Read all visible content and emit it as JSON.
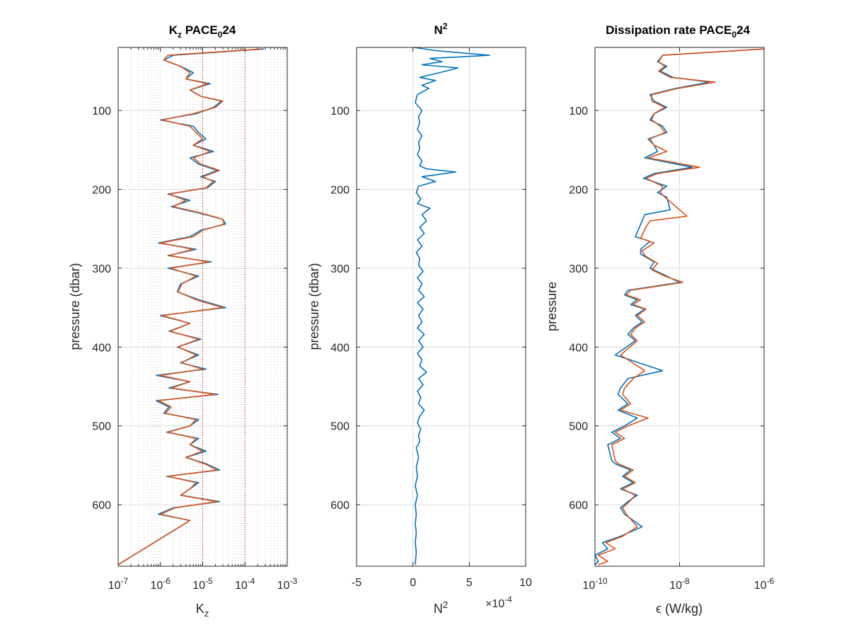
{
  "colors": {
    "series1": "#0072BD",
    "series2": "#D95319",
    "refline": "#c00000",
    "axes": "#262626",
    "grid": "#dcdcdc"
  },
  "chart_data": [
    {
      "type": "line",
      "title": {
        "main": "K",
        "sub": "z",
        "rest": " PACE",
        "sub2": "0",
        "tail": "24"
      },
      "xlabel": {
        "main": "K",
        "sub": "z"
      },
      "ylabel": "pressure (dbar)",
      "xscale": "log",
      "xlim": [
        1e-07,
        0.001
      ],
      "ylim": [
        20,
        678
      ],
      "yreverse": true,
      "grid": "minor-log",
      "reference_x": [
        1e-05,
        0.0001
      ],
      "xticks": [
        "10^-7",
        "10^-6",
        "10^-5",
        "10^-4",
        "10^-3"
      ],
      "yticks": [
        100,
        200,
        300,
        400,
        500,
        600
      ],
      "series": [
        {
          "x": [
            0.00028,
            2e-06,
            1.2e-06,
            3e-06,
            6e-06,
            4e-06,
            1.5e-05,
            5e-06,
            9e-06,
            2.8e-05,
            1.8e-05,
            7e-06,
            1e-06,
            6e-06,
            8e-06,
            1.2e-05,
            6e-06,
            1.8e-05,
            5e-06,
            8e-06,
            2.2e-05,
            9e-06,
            2e-05,
            1.3e-05,
            1.5e-06,
            5e-06,
            1.8e-06,
            8e-06,
            3e-05,
            3.5e-05,
            9e-06,
            5e-06,
            9e-07,
            7e-06,
            1.5e-06,
            1.6e-05,
            1.5e-06,
            8e-06,
            3e-06,
            2.5e-06,
            8e-06,
            3.5e-05,
            1e-06,
            5e-06,
            1.6e-06,
            9e-06,
            2.5e-06,
            8e-06,
            3e-06,
            1.2e-05,
            8e-07,
            5e-06,
            1.6e-06,
            2.3e-05,
            8e-07,
            1.6e-06,
            1.2e-06,
            8e-06,
            5e-06,
            1.4e-06,
            8e-06,
            5e-06,
            1.2e-05,
            4e-06,
            1.2e-05,
            2.5e-05,
            1.4e-06,
            8e-06,
            5e-06,
            3e-06,
            2.5e-05,
            2e-06,
            9e-07,
            5e-06,
            1e-07
          ],
          "y": [
            22,
            30,
            36,
            44,
            52,
            60,
            66,
            74,
            82,
            88,
            96,
            104,
            112,
            120,
            128,
            136,
            144,
            152,
            160,
            168,
            176,
            184,
            190,
            198,
            206,
            214,
            222,
            230,
            238,
            244,
            252,
            260,
            268,
            276,
            284,
            292,
            300,
            310,
            320,
            330,
            340,
            350,
            360,
            370,
            380,
            390,
            400,
            410,
            420,
            428,
            436,
            444,
            452,
            460,
            468,
            476,
            484,
            492,
            500,
            508,
            516,
            524,
            532,
            540,
            548,
            556,
            564,
            572,
            580,
            588,
            596,
            604,
            612,
            620,
            676
          ]
        },
        {
          "x": [
            0.00025,
            1.5e-06,
            1.2e-06,
            3e-06,
            5e-06,
            4e-06,
            1.3e-05,
            5e-06,
            9e-06,
            3e-05,
            2e-05,
            6e-06,
            1.1e-06,
            5e-06,
            7e-06,
            1e-05,
            6e-06,
            1.5e-05,
            6e-06,
            9e-06,
            2.5e-05,
            1e-05,
            1.8e-05,
            1.2e-05,
            1.6e-06,
            4e-06,
            2e-06,
            9e-06,
            3e-05,
            3.2e-05,
            1e-05,
            6e-06,
            1e-06,
            6e-06,
            1.6e-06,
            1.4e-05,
            1.7e-06,
            7e-06,
            3.2e-06,
            2.6e-06,
            7e-06,
            3e-05,
            1.1e-06,
            5e-06,
            1.7e-06,
            8e-06,
            2.6e-06,
            7e-06,
            3.2e-06,
            1e-05,
            1e-06,
            5e-06,
            1.8e-06,
            2e-05,
            9e-07,
            1.8e-06,
            1.3e-06,
            7e-06,
            5e-06,
            1.5e-06,
            7e-06,
            5e-06,
            1e-05,
            4e-06,
            1.1e-05,
            2.2e-05,
            1.5e-06,
            7e-06,
            5e-06,
            3e-06,
            2.2e-05,
            2.2e-06,
            1e-06,
            5e-06,
            1e-07
          ],
          "y": [
            22,
            30,
            36,
            44,
            52,
            60,
            66,
            74,
            82,
            88,
            96,
            104,
            112,
            120,
            128,
            136,
            144,
            152,
            160,
            168,
            176,
            184,
            190,
            198,
            206,
            214,
            222,
            230,
            238,
            244,
            252,
            260,
            268,
            276,
            284,
            292,
            300,
            310,
            320,
            330,
            340,
            350,
            360,
            370,
            380,
            390,
            400,
            410,
            420,
            428,
            436,
            444,
            452,
            460,
            468,
            476,
            484,
            492,
            500,
            508,
            516,
            524,
            532,
            540,
            548,
            556,
            564,
            572,
            580,
            588,
            596,
            604,
            612,
            620,
            676
          ]
        }
      ]
    },
    {
      "type": "line",
      "title": {
        "main": "N",
        "sup": "2"
      },
      "xlabel": {
        "main": "N",
        "sup": "2"
      },
      "xlabel_exponent": "×10^-4",
      "ylabel": "pressure (dbar)",
      "xscale": "linear",
      "xlim": [
        -5,
        10
      ],
      "ylim": [
        20,
        678
      ],
      "yreverse": true,
      "grid": "major",
      "xticks": [
        "-5",
        "0",
        "5",
        "10"
      ],
      "xtick_values": [
        -5,
        0,
        5,
        10
      ],
      "yticks": [
        100,
        200,
        300,
        400,
        500,
        600
      ],
      "series": [
        {
          "x": [
            0.1,
            2.0,
            6.8,
            1.5,
            2.6,
            0.8,
            4.0,
            1.8,
            0.6,
            2.0,
            0.8,
            1.4,
            0.4,
            0.2,
            0.8,
            0.5,
            0.6,
            0.4,
            0.8,
            0.5,
            0.6,
            0.4,
            0.8,
            0.6,
            1.2,
            3.8,
            0.8,
            2.0,
            0.5,
            0.3,
            0.7,
            0.4,
            1.5,
            0.8,
            1.2,
            0.6,
            1.0,
            0.4,
            0.8,
            0.3,
            0.6,
            0.5,
            0.9,
            0.4,
            0.8,
            0.5,
            1.0,
            0.4,
            0.9,
            0.5,
            0.8,
            0.4,
            1.0,
            0.5,
            0.9,
            0.4,
            0.8,
            0.6,
            1.2,
            0.5,
            0.9,
            0.4,
            0.7,
            0.5,
            1.0,
            0.6,
            0.4,
            0.7,
            0.5,
            0.6,
            0.3,
            0.5,
            0.3,
            0.4,
            0.2,
            0.4,
            0.2,
            0.3,
            0.2,
            0.3,
            0.2,
            0.3,
            0.2
          ],
          "y": [
            20,
            24,
            30,
            34,
            38,
            42,
            46,
            54,
            58,
            62,
            68,
            72,
            80,
            90,
            100,
            108,
            116,
            124,
            132,
            140,
            148,
            156,
            164,
            170,
            174,
            178,
            184,
            190,
            196,
            204,
            212,
            218,
            224,
            232,
            240,
            248,
            256,
            264,
            272,
            280,
            288,
            296,
            304,
            312,
            320,
            328,
            336,
            344,
            352,
            360,
            368,
            376,
            384,
            392,
            400,
            408,
            416,
            424,
            432,
            440,
            448,
            456,
            464,
            472,
            480,
            488,
            496,
            504,
            512,
            520,
            528,
            540,
            552,
            564,
            576,
            588,
            600,
            612,
            624,
            636,
            648,
            660,
            676
          ]
        }
      ]
    },
    {
      "type": "line",
      "title": {
        "main": "Dissipation rate PACE",
        "sub": "0",
        "tail": "24"
      },
      "xlabel": {
        "main": "ϵ (W/kg)"
      },
      "ylabel": "pressure",
      "xscale": "log",
      "xlim": [
        1e-10,
        1e-06
      ],
      "ylim": [
        20,
        678
      ],
      "yreverse": true,
      "grid": "major",
      "xticks": [
        "10^-10",
        "10^-8",
        "10^-6"
      ],
      "xtick_values": [
        1e-10,
        1e-08,
        1e-06
      ],
      "yticks": [
        100,
        200,
        300,
        400,
        500,
        600
      ],
      "series": [
        {
          "x": [
            1e-06,
            4e-09,
            3e-09,
            5e-09,
            3.5e-09,
            7e-09,
            5e-08,
            8e-09,
            2e-09,
            2.5e-09,
            5e-09,
            2.5e-09,
            2e-09,
            4e-09,
            5e-09,
            1.8e-09,
            2.5e-09,
            3e-09,
            1.5e-09,
            2e-08,
            2.5e-09,
            1.4e-09,
            5e-09,
            3e-09,
            5e-09,
            6e-09,
            1.5e-09,
            1.3e-09,
            9e-10,
            2e-09,
            1.2e-09,
            1.2e-09,
            2.5e-09,
            2e-09,
            5e-09,
            1e-08,
            6e-10,
            5e-10,
            1e-09,
            7e-10,
            1.5e-09,
            9e-10,
            1.3e-09,
            8e-10,
            6e-10,
            9e-10,
            3e-10,
            4e-09,
            6e-10,
            4e-10,
            3.5e-10,
            6e-10,
            3.5e-10,
            1e-09,
            5e-10,
            2.5e-10,
            4e-10,
            2e-10,
            2.5e-10,
            3e-10,
            7e-10,
            4.5e-10,
            8e-10,
            4e-10,
            1e-09,
            6e-10,
            4e-10,
            5e-10,
            1.3e-09,
            4e-10,
            1.5e-10,
            2e-10,
            1e-10,
            1.2e-10,
            1e-10
          ],
          "y": [
            22,
            30,
            38,
            44,
            50,
            58,
            64,
            72,
            80,
            88,
            96,
            104,
            112,
            120,
            128,
            136,
            144,
            152,
            160,
            172,
            180,
            186,
            196,
            204,
            210,
            226,
            232,
            240,
            260,
            266,
            276,
            282,
            292,
            300,
            310,
            318,
            328,
            334,
            340,
            346,
            352,
            360,
            368,
            376,
            384,
            392,
            410,
            430,
            440,
            452,
            460,
            472,
            480,
            490,
            500,
            508,
            516,
            524,
            544,
            548,
            556,
            564,
            572,
            580,
            588,
            596,
            604,
            612,
            628,
            640,
            648,
            656,
            664,
            672,
            676
          ]
        },
        {
          "x": [
            1e-06,
            4e-09,
            3.2e-09,
            4.5e-09,
            3.2e-09,
            6e-09,
            7e-08,
            9e-09,
            2.2e-09,
            2.2e-09,
            4.5e-09,
            2.5e-09,
            2.2e-09,
            3.5e-09,
            4.5e-09,
            2e-09,
            2.5e-09,
            5e-09,
            1.8e-09,
            3e-08,
            3e-09,
            1.6e-09,
            4e-09,
            3.5e-09,
            4.5e-09,
            1.5e-08,
            2e-09,
            1.6e-09,
            1.2e-09,
            2.5e-09,
            1.3e-09,
            1.5e-09,
            3e-09,
            2.2e-09,
            4.5e-09,
            1.2e-08,
            7e-10,
            5.5e-10,
            1.2e-09,
            8e-10,
            1.6e-09,
            1e-09,
            1.5e-09,
            9e-10,
            7e-10,
            1e-09,
            4e-10,
            1.5e-09,
            8e-10,
            5e-10,
            4.5e-10,
            7e-10,
            4e-10,
            1.8e-09,
            6e-10,
            3e-10,
            5e-10,
            2.5e-10,
            3e-10,
            3.5e-10,
            8e-10,
            5e-10,
            9e-10,
            4.5e-10,
            9e-10,
            6.5e-10,
            4.5e-10,
            5.5e-10,
            1e-09,
            4.5e-10,
            1.8e-10,
            3e-10,
            1.2e-10,
            2e-10,
            1.2e-10
          ],
          "y": [
            22,
            30,
            38,
            44,
            50,
            58,
            64,
            72,
            80,
            88,
            96,
            104,
            112,
            120,
            128,
            136,
            144,
            152,
            160,
            172,
            180,
            186,
            196,
            204,
            210,
            234,
            240,
            248,
            262,
            268,
            278,
            284,
            294,
            302,
            310,
            318,
            328,
            334,
            340,
            346,
            352,
            360,
            368,
            376,
            384,
            392,
            410,
            430,
            440,
            452,
            460,
            472,
            480,
            490,
            500,
            508,
            516,
            524,
            544,
            548,
            556,
            564,
            572,
            580,
            588,
            596,
            604,
            612,
            628,
            640,
            648,
            656,
            664,
            672,
            676
          ]
        }
      ]
    }
  ]
}
